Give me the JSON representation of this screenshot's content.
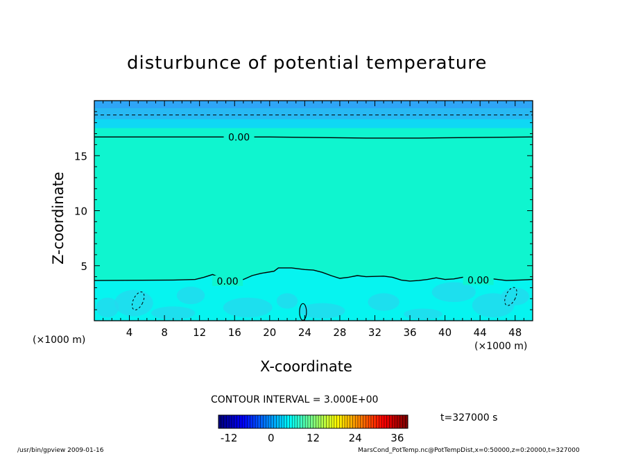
{
  "chart_data": {
    "type": "heatmap",
    "title": "disturbunce of potential temperature",
    "xlabel": "X-coordinate",
    "ylabel": "Z-coordinate",
    "x_unit": "(×1000 m)",
    "z_unit": "(×1000 m)",
    "xlim": [
      0,
      50
    ],
    "ylim": [
      0,
      20
    ],
    "x_ticks": [
      4,
      8,
      12,
      16,
      20,
      24,
      28,
      32,
      36,
      40,
      44,
      48
    ],
    "y_ticks": [
      5,
      10,
      15
    ],
    "contour_interval_text": "CONTOUR INTERVAL = 3.000E+00",
    "contour_labels": [
      {
        "x": 16.5,
        "z": 16.7,
        "text": "0.00"
      },
      {
        "x": 15.2,
        "z": 3.6,
        "text": "0.00"
      },
      {
        "x": 43.8,
        "z": 3.7,
        "text": "0.00"
      }
    ],
    "zero_contours": {
      "upper": [
        [
          0,
          16.7
        ],
        [
          10,
          16.7
        ],
        [
          20,
          16.7
        ],
        [
          31,
          16.6
        ],
        [
          37,
          16.6
        ],
        [
          50,
          16.7
        ]
      ],
      "lower": [
        [
          0,
          3.65
        ],
        [
          9,
          3.7
        ],
        [
          11.5,
          3.75
        ],
        [
          12.5,
          3.95
        ],
        [
          13.5,
          4.2
        ],
        [
          14.5,
          3.85
        ],
        [
          15.5,
          3.7
        ],
        [
          17,
          3.75
        ],
        [
          18,
          4.1
        ],
        [
          19,
          4.3
        ],
        [
          20.5,
          4.5
        ],
        [
          21,
          4.8
        ],
        [
          22.5,
          4.8
        ],
        [
          24,
          4.65
        ],
        [
          25,
          4.6
        ],
        [
          26,
          4.4
        ],
        [
          27,
          4.1
        ],
        [
          28,
          3.85
        ],
        [
          29,
          3.95
        ],
        [
          30,
          4.1
        ],
        [
          31,
          4.0
        ],
        [
          33,
          4.05
        ],
        [
          34,
          3.95
        ],
        [
          35,
          3.7
        ],
        [
          36,
          3.6
        ],
        [
          37,
          3.65
        ],
        [
          38,
          3.75
        ],
        [
          39,
          3.9
        ],
        [
          40,
          3.75
        ],
        [
          41,
          3.8
        ],
        [
          42,
          3.95
        ],
        [
          43,
          4.0
        ],
        [
          44,
          3.85
        ],
        [
          45,
          3.85
        ],
        [
          46,
          3.75
        ],
        [
          47,
          3.65
        ],
        [
          48.5,
          3.7
        ],
        [
          50,
          3.75
        ]
      ]
    },
    "colorbar": {
      "ticks": [
        -12,
        0,
        12,
        24,
        36
      ],
      "range": [
        -15,
        39
      ],
      "interval": 3
    },
    "time_label": "t=327000 s",
    "colors": {
      "top_band": "#2fa5f7",
      "upper_band": "#28b9f3",
      "upper_band2": "#0fd8f4",
      "middle": "#0ff5cf",
      "lower": "#06f4f0",
      "lower_patches": "#25d8ee"
    }
  },
  "footer": {
    "left": "/usr/bin/gpview   2009-01-16",
    "right": "MarsCond_PotTemp.nc@PotTempDist,x=0:50000,z=0:20000,t=327000"
  }
}
